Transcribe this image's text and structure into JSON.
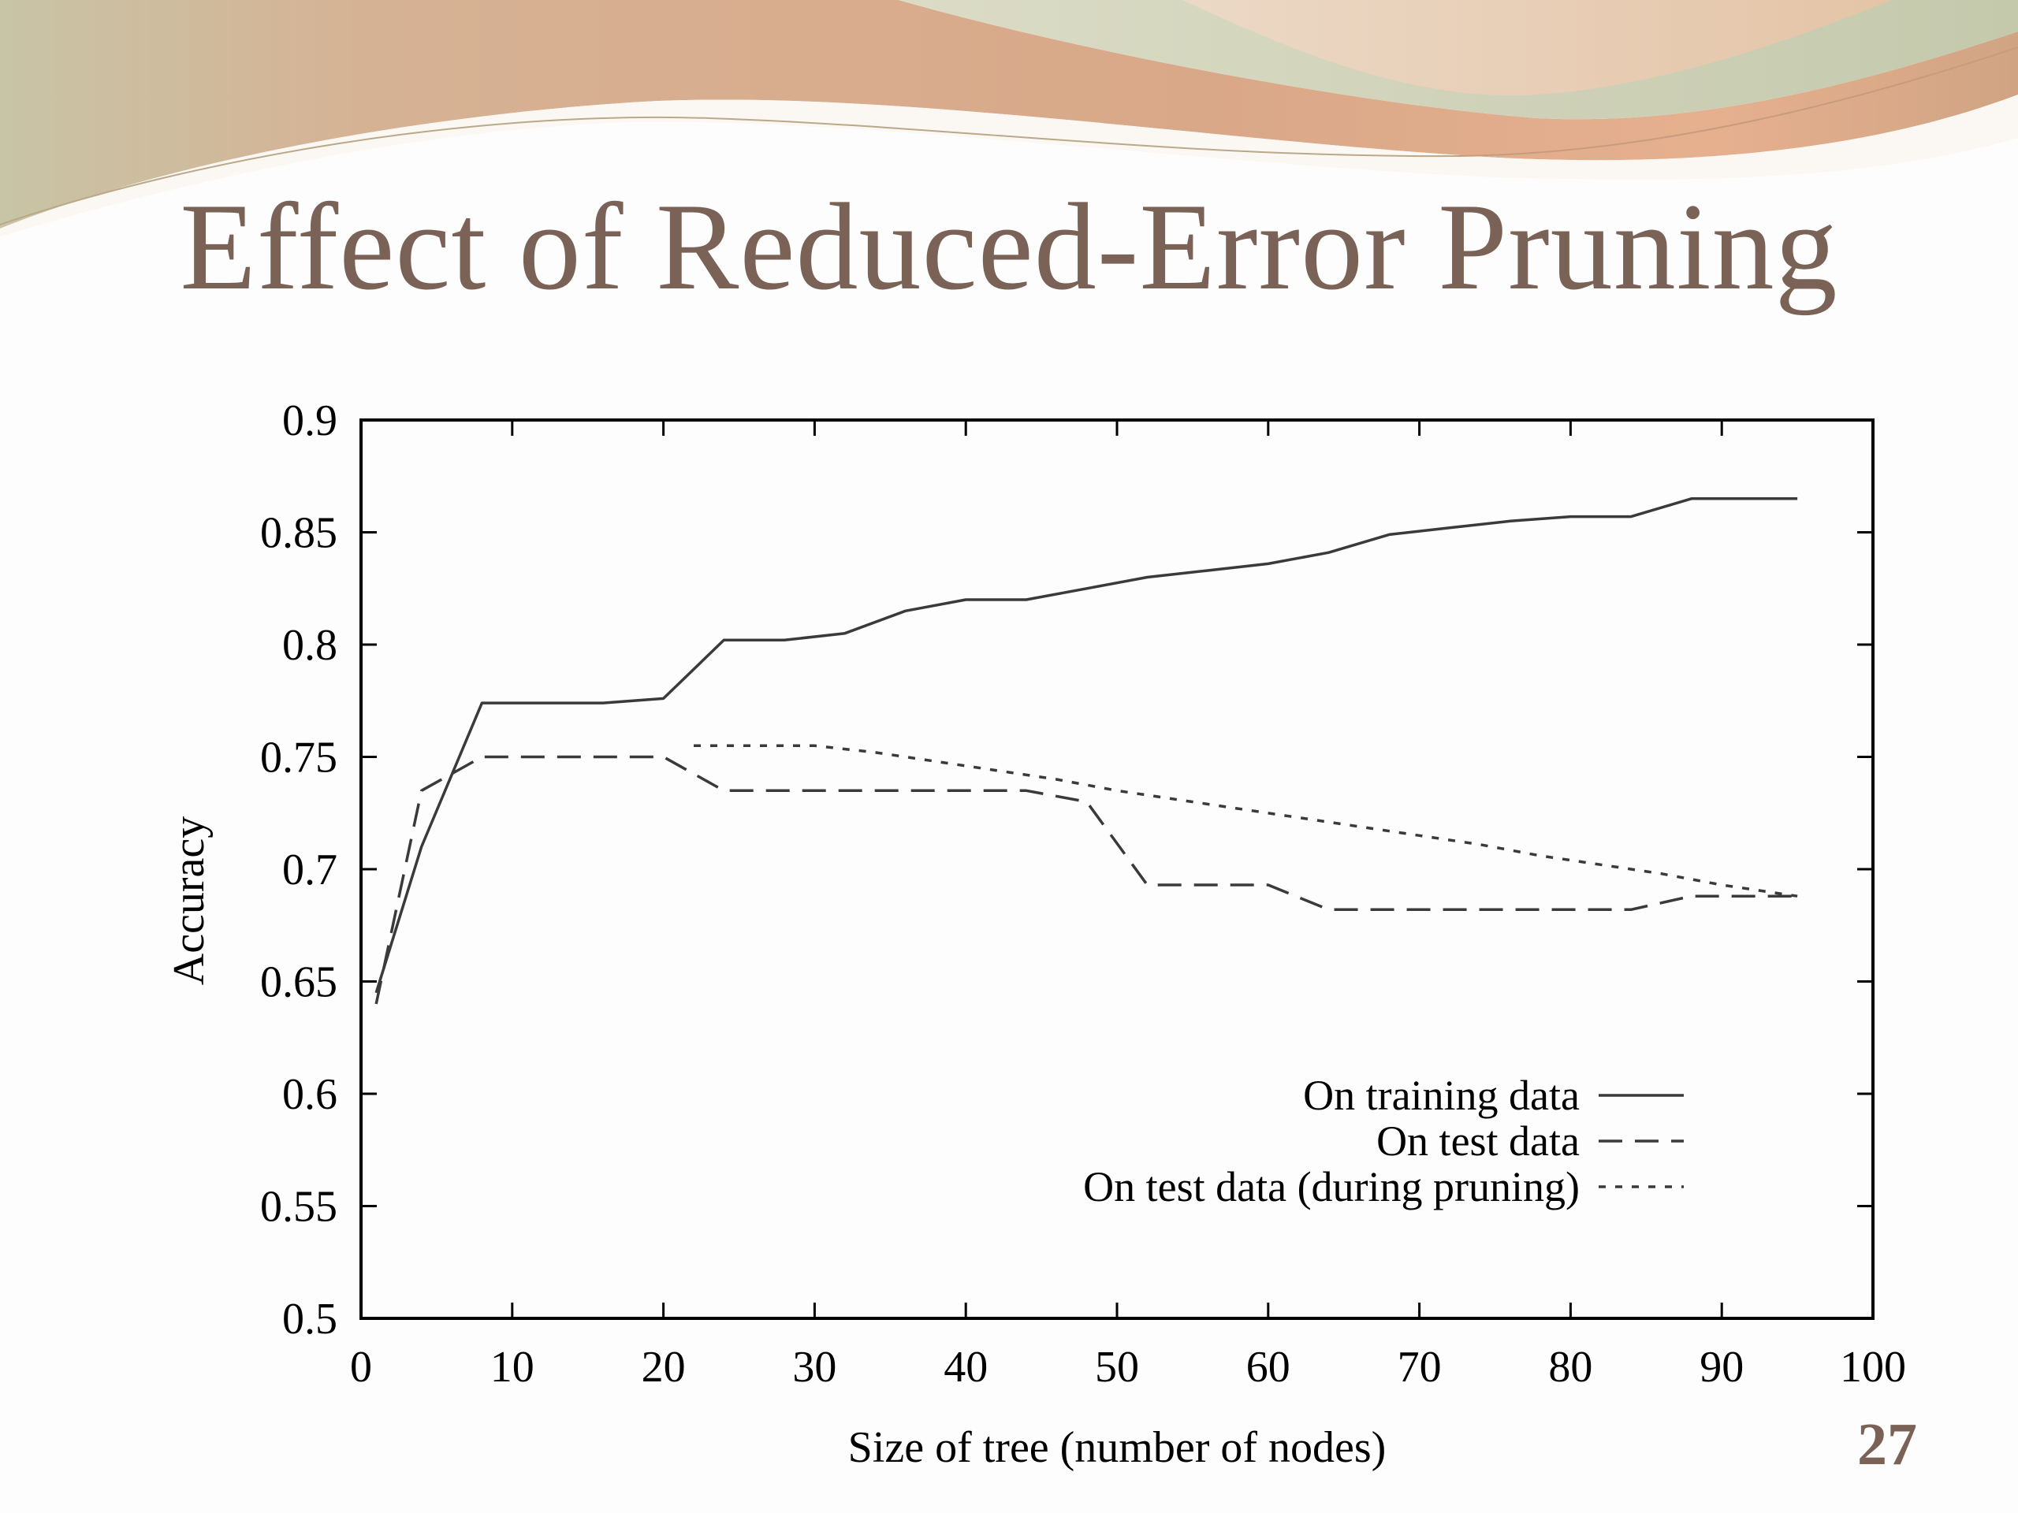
{
  "slide": {
    "title": "Effect of Reduced-Error Pruning",
    "page_number": "27"
  },
  "colors": {
    "title": "#7a6257",
    "decor_band": "#d9a888",
    "decor_green": "#c9cdb2",
    "series_line": "#3a3a3a"
  },
  "chart_data": {
    "type": "line",
    "xlabel": "Size of tree (number of nodes)",
    "ylabel": "Accuracy",
    "xlim": [
      0,
      100
    ],
    "ylim": [
      0.5,
      0.9
    ],
    "xticks": [
      "0",
      "10",
      "20",
      "30",
      "40",
      "50",
      "60",
      "70",
      "80",
      "90",
      "100"
    ],
    "yticks": [
      "0.5",
      "0.55",
      "0.6",
      "0.65",
      "0.7",
      "0.75",
      "0.8",
      "0.85",
      "0.9"
    ],
    "legend_position": "bottom-right",
    "grid": false,
    "series": [
      {
        "name": "On training data",
        "style": "solid",
        "x": [
          1,
          4,
          8,
          12,
          16,
          20,
          24,
          28,
          32,
          36,
          40,
          44,
          48,
          52,
          56,
          60,
          64,
          68,
          72,
          76,
          80,
          84,
          88,
          92,
          95
        ],
        "y": [
          0.645,
          0.71,
          0.774,
          0.774,
          0.774,
          0.776,
          0.802,
          0.802,
          0.805,
          0.815,
          0.82,
          0.82,
          0.825,
          0.83,
          0.833,
          0.836,
          0.841,
          0.849,
          0.852,
          0.855,
          0.857,
          0.857,
          0.865,
          0.865,
          0.865
        ]
      },
      {
        "name": "On test data",
        "style": "dashed",
        "x": [
          1,
          4,
          8,
          12,
          16,
          20,
          24,
          28,
          32,
          36,
          40,
          44,
          48,
          52,
          56,
          60,
          64,
          68,
          72,
          76,
          80,
          84,
          88,
          92,
          95
        ],
        "y": [
          0.64,
          0.735,
          0.75,
          0.75,
          0.75,
          0.75,
          0.735,
          0.735,
          0.735,
          0.735,
          0.735,
          0.735,
          0.73,
          0.693,
          0.693,
          0.693,
          0.682,
          0.682,
          0.682,
          0.682,
          0.682,
          0.682,
          0.688,
          0.688,
          0.688
        ]
      },
      {
        "name": "On test data (during pruning)",
        "style": "dotted",
        "x": [
          22,
          26,
          30,
          34,
          38,
          42,
          46,
          50,
          54,
          58,
          62,
          66,
          70,
          74,
          78,
          82,
          86,
          90,
          95
        ],
        "y": [
          0.755,
          0.755,
          0.755,
          0.752,
          0.748,
          0.744,
          0.74,
          0.735,
          0.731,
          0.727,
          0.723,
          0.719,
          0.715,
          0.711,
          0.706,
          0.702,
          0.698,
          0.693,
          0.688
        ]
      }
    ]
  }
}
